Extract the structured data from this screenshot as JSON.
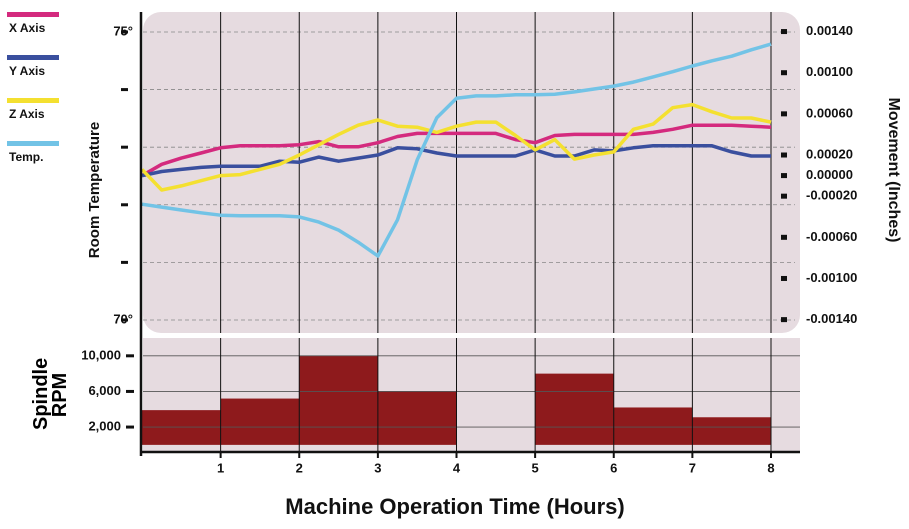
{
  "chart_data": [
    {
      "type": "line",
      "ylabel": "Room Temperature",
      "y2label": "Movement (Inches)",
      "xlim": [
        0,
        8
      ],
      "x": [
        0,
        0.25,
        0.5,
        0.75,
        1,
        1.25,
        1.5,
        1.75,
        2,
        2.25,
        2.5,
        2.75,
        3,
        3.25,
        3.5,
        3.75,
        4,
        4.25,
        4.5,
        4.75,
        5,
        5.25,
        5.5,
        5.75,
        6,
        6.25,
        6.5,
        6.75,
        7,
        7.25,
        7.5,
        7.75,
        8
      ],
      "ylim": [
        69.774,
        75.347
      ],
      "yticks": [
        {
          "value": 70,
          "label": "70°"
        },
        {
          "value": 71,
          "label": null
        },
        {
          "value": 72,
          "label": null
        },
        {
          "value": 73,
          "label": null
        },
        {
          "value": 74,
          "label": null
        },
        {
          "value": 75,
          "label": "75°"
        }
      ],
      "y2lim": [
        -0.00153,
        0.00159
      ],
      "y2ticks": [
        {
          "value": 0.0014,
          "label": "0.00140"
        },
        {
          "value": 0.001,
          "label": "0.00100"
        },
        {
          "value": 0.0006,
          "label": "0.00060"
        },
        {
          "value": 0.0002,
          "label": "0.00020"
        },
        {
          "value": 0,
          "label": "0.00000"
        },
        {
          "value": -0.0002,
          "label": "-0.00020"
        },
        {
          "value": -0.0006,
          "label": "-0.00060"
        },
        {
          "value": -0.001,
          "label": "-0.00100"
        },
        {
          "value": -0.0014,
          "label": "-0.00140"
        }
      ],
      "grid": true,
      "legend": "top-left",
      "series": [
        {
          "name": "X Axis",
          "color": "#d42a7e",
          "axis": "y2",
          "values": [
            0,
            0.00011,
            0.00017,
            0.00022,
            0.00027,
            0.00029,
            0.00029,
            0.00029,
            0.0003,
            0.00033,
            0.00028,
            0.00028,
            0.00032,
            0.00038,
            0.00041,
            0.00041,
            0.00041,
            0.00041,
            0.00041,
            0.00035,
            0.00032,
            0.00039,
            0.0004,
            0.0004,
            0.0004,
            0.0004,
            0.00042,
            0.00045,
            0.00049,
            0.00049,
            0.00049,
            0.00048,
            0.00047
          ]
        },
        {
          "name": "Y Axis",
          "color": "#3a4f9e",
          "axis": "y2",
          "values": [
            0,
            4e-05,
            6e-05,
            8e-05,
            9e-05,
            9e-05,
            9e-05,
            0.00014,
            0.00013,
            0.00018,
            0.00014,
            0.00017,
            0.0002,
            0.00027,
            0.00026,
            0.00022,
            0.00019,
            0.00019,
            0.00019,
            0.00019,
            0.00025,
            0.00019,
            0.00019,
            0.00025,
            0.00024,
            0.00027,
            0.00029,
            0.00029,
            0.00029,
            0.00029,
            0.00023,
            0.00019,
            0.00019
          ]
        },
        {
          "name": "Z Axis",
          "color": "#f4e030",
          "axis": "y2",
          "values": [
            6e-05,
            -0.00014,
            -0.0001,
            -5e-05,
            0,
            1e-05,
            6e-05,
            0.00011,
            0.0002,
            0.0003,
            0.0004,
            0.00049,
            0.00054,
            0.00048,
            0.00047,
            0.00042,
            0.00048,
            0.00052,
            0.00052,
            0.00039,
            0.00025,
            0.00035,
            0.00016,
            0.0002,
            0.00023,
            0.00045,
            0.0005,
            0.00066,
            0.00069,
            0.00062,
            0.00056,
            0.00056,
            0.00052
          ]
        },
        {
          "name": "Temp.",
          "color": "#72c3e6",
          "values": [
            72.01,
            71.96,
            71.91,
            71.86,
            71.82,
            71.81,
            71.81,
            71.81,
            71.79,
            71.7,
            71.56,
            71.35,
            71.11,
            71.74,
            72.78,
            73.51,
            73.85,
            73.89,
            73.89,
            73.91,
            73.91,
            73.92,
            73.96,
            74.01,
            74.06,
            74.13,
            74.22,
            74.31,
            74.41,
            74.5,
            74.58,
            74.69,
            74.79
          ]
        }
      ]
    },
    {
      "type": "histogram",
      "ylabel": "Spindle RPM",
      "xlabel": "Machine Operation Time (Hours)",
      "bins": [
        0,
        1,
        2,
        3,
        4,
        5,
        6,
        7,
        8
      ],
      "values": [
        3900,
        5200,
        10000,
        6000,
        0,
        8000,
        4200,
        3100
      ],
      "color": "#8e1a1c",
      "xlim": [
        0,
        8
      ],
      "xticks": [
        1,
        2,
        3,
        4,
        5,
        6,
        7,
        8
      ],
      "ylim": [
        -800,
        12000
      ],
      "yticks": [
        {
          "value": 2000,
          "label": "2,000"
        },
        {
          "value": 6000,
          "label": "6,000"
        },
        {
          "value": 10000,
          "label": "10,000"
        }
      ],
      "grid": true
    }
  ]
}
